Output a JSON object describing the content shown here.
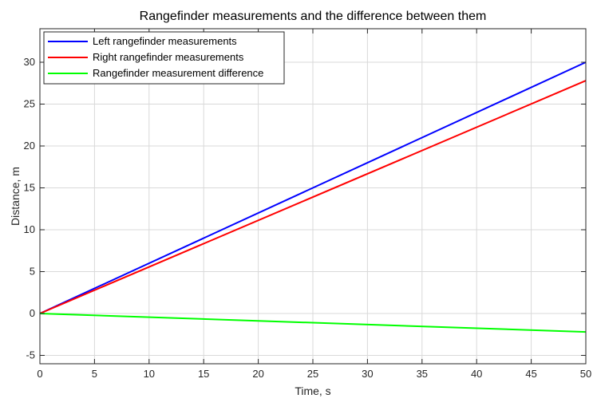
{
  "chart_data": {
    "type": "line",
    "title": "Rangefinder measurements and the difference between them",
    "xlabel": "Time, s",
    "ylabel": "Distance, m",
    "xlim": [
      0,
      50
    ],
    "ylim": [
      -6,
      34
    ],
    "xticks": [
      0,
      5,
      10,
      15,
      20,
      25,
      30,
      35,
      40,
      45,
      50
    ],
    "yticks": [
      -5,
      0,
      5,
      10,
      15,
      20,
      25,
      30
    ],
    "grid": true,
    "legend_position": "top-left",
    "series": [
      {
        "name": "Left rangefinder measurements",
        "color": "#0000ff",
        "x": [
          0,
          50
        ],
        "y": [
          0,
          30
        ]
      },
      {
        "name": "Right rangefinder measurements",
        "color": "#ff0000",
        "x": [
          0,
          50
        ],
        "y": [
          0,
          27.8
        ]
      },
      {
        "name": "Rangefinder measurement difference",
        "color": "#00ff00",
        "x": [
          0,
          50
        ],
        "y": [
          0,
          -2.2
        ]
      }
    ]
  }
}
